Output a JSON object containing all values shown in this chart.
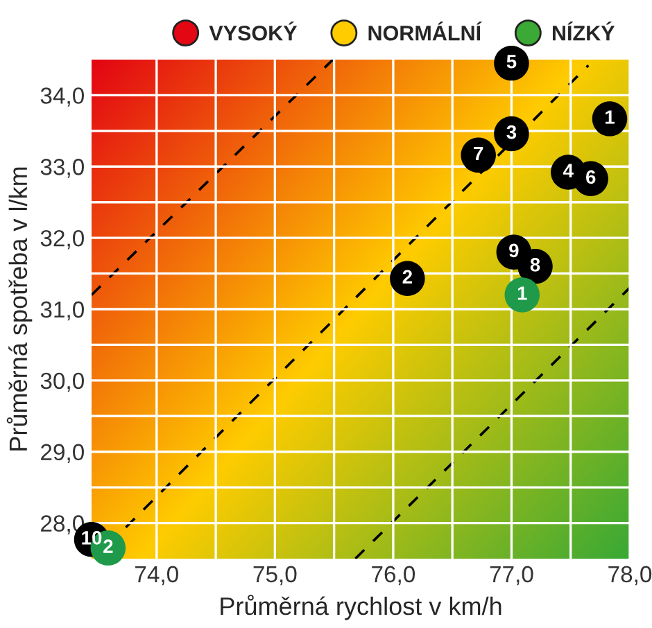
{
  "chart_data": {
    "type": "scatter",
    "xlabel": "Průměrná rychlost v km/h",
    "ylabel": "Průměrná spotřeba v l/km",
    "xlim": [
      73.45,
      78.0
    ],
    "ylim": [
      27.5,
      34.5
    ],
    "xticks": [
      {
        "value": 74.0,
        "label": "74,0"
      },
      {
        "value": 74.5,
        "label": null
      },
      {
        "value": 75.0,
        "label": "75,0"
      },
      {
        "value": 75.5,
        "label": null
      },
      {
        "value": 76.0,
        "label": "76,0"
      },
      {
        "value": 76.5,
        "label": null
      },
      {
        "value": 77.0,
        "label": "77,0"
      },
      {
        "value": 77.5,
        "label": null
      },
      {
        "value": 78.0,
        "label": "78,0"
      }
    ],
    "yticks": [
      {
        "value": 28.0,
        "label": "28,0"
      },
      {
        "value": 28.5,
        "label": null
      },
      {
        "value": 29.0,
        "label": "29,0"
      },
      {
        "value": 29.5,
        "label": null
      },
      {
        "value": 30.0,
        "label": "30,0"
      },
      {
        "value": 30.5,
        "label": null
      },
      {
        "value": 31.0,
        "label": "31,0"
      },
      {
        "value": 31.5,
        "label": null
      },
      {
        "value": 32.0,
        "label": "32,0"
      },
      {
        "value": 32.5,
        "label": null
      },
      {
        "value": 33.0,
        "label": "33,0"
      },
      {
        "value": 33.5,
        "label": null
      },
      {
        "value": 34.0,
        "label": "34,0"
      }
    ],
    "grid": true,
    "legend": "top right",
    "marker": "circle",
    "series": [
      {
        "name": "VYSOKÝ",
        "color": "#e30613"
      },
      {
        "name": "NORMÁLNÍ",
        "color": "#ffcc00"
      },
      {
        "name": "NÍZKÝ",
        "color": "#3aa935"
      },
      {
        "type": "line",
        "marker": "none",
        "line_style": "dashed",
        "color": "#000000",
        "x": [
          73.45,
          75.49
        ],
        "values": [
          31.2,
          34.5
        ]
      },
      {
        "type": "line",
        "marker": "none",
        "line_style": "dashed",
        "color": "#000000",
        "x": [
          73.74,
          77.65
        ],
        "values": [
          27.94,
          34.42
        ]
      },
      {
        "type": "line",
        "marker": "none",
        "line_style": "dashed",
        "color": "#000000",
        "x": [
          75.68,
          78.0
        ],
        "values": [
          27.5,
          31.3
        ]
      },
      {
        "color": "#000000",
        "x": [
          77.0,
          77.83,
          77.0,
          76.72,
          77.48,
          77.67,
          77.02,
          77.2,
          76.12,
          73.45
        ],
        "values": [
          34.45,
          33.67,
          33.46,
          33.16,
          32.92,
          32.83,
          31.8,
          31.6,
          31.43,
          27.77
        ]
      },
      {
        "color": "#1e9a4a",
        "x": [
          77.09,
          73.59
        ],
        "values": [
          31.2,
          27.65
        ]
      }
    ],
    "annotations": [
      {
        "text": "5",
        "x": 77.0,
        "y": 34.45
      },
      {
        "text": "1",
        "x": 77.83,
        "y": 33.67
      },
      {
        "text": "3",
        "x": 77.0,
        "y": 33.46
      },
      {
        "text": "7",
        "x": 76.72,
        "y": 33.16
      },
      {
        "text": "4",
        "x": 77.48,
        "y": 32.92
      },
      {
        "text": "6",
        "x": 77.67,
        "y": 32.83
      },
      {
        "text": "9",
        "x": 77.02,
        "y": 31.8
      },
      {
        "text": "8",
        "x": 77.2,
        "y": 31.6
      },
      {
        "text": "2",
        "x": 76.12,
        "y": 31.43
      },
      {
        "text": "10",
        "x": 73.45,
        "y": 27.77
      },
      {
        "text": "1",
        "x": 77.09,
        "y": 31.2
      },
      {
        "text": "2",
        "x": 73.59,
        "y": 27.65
      }
    ]
  }
}
